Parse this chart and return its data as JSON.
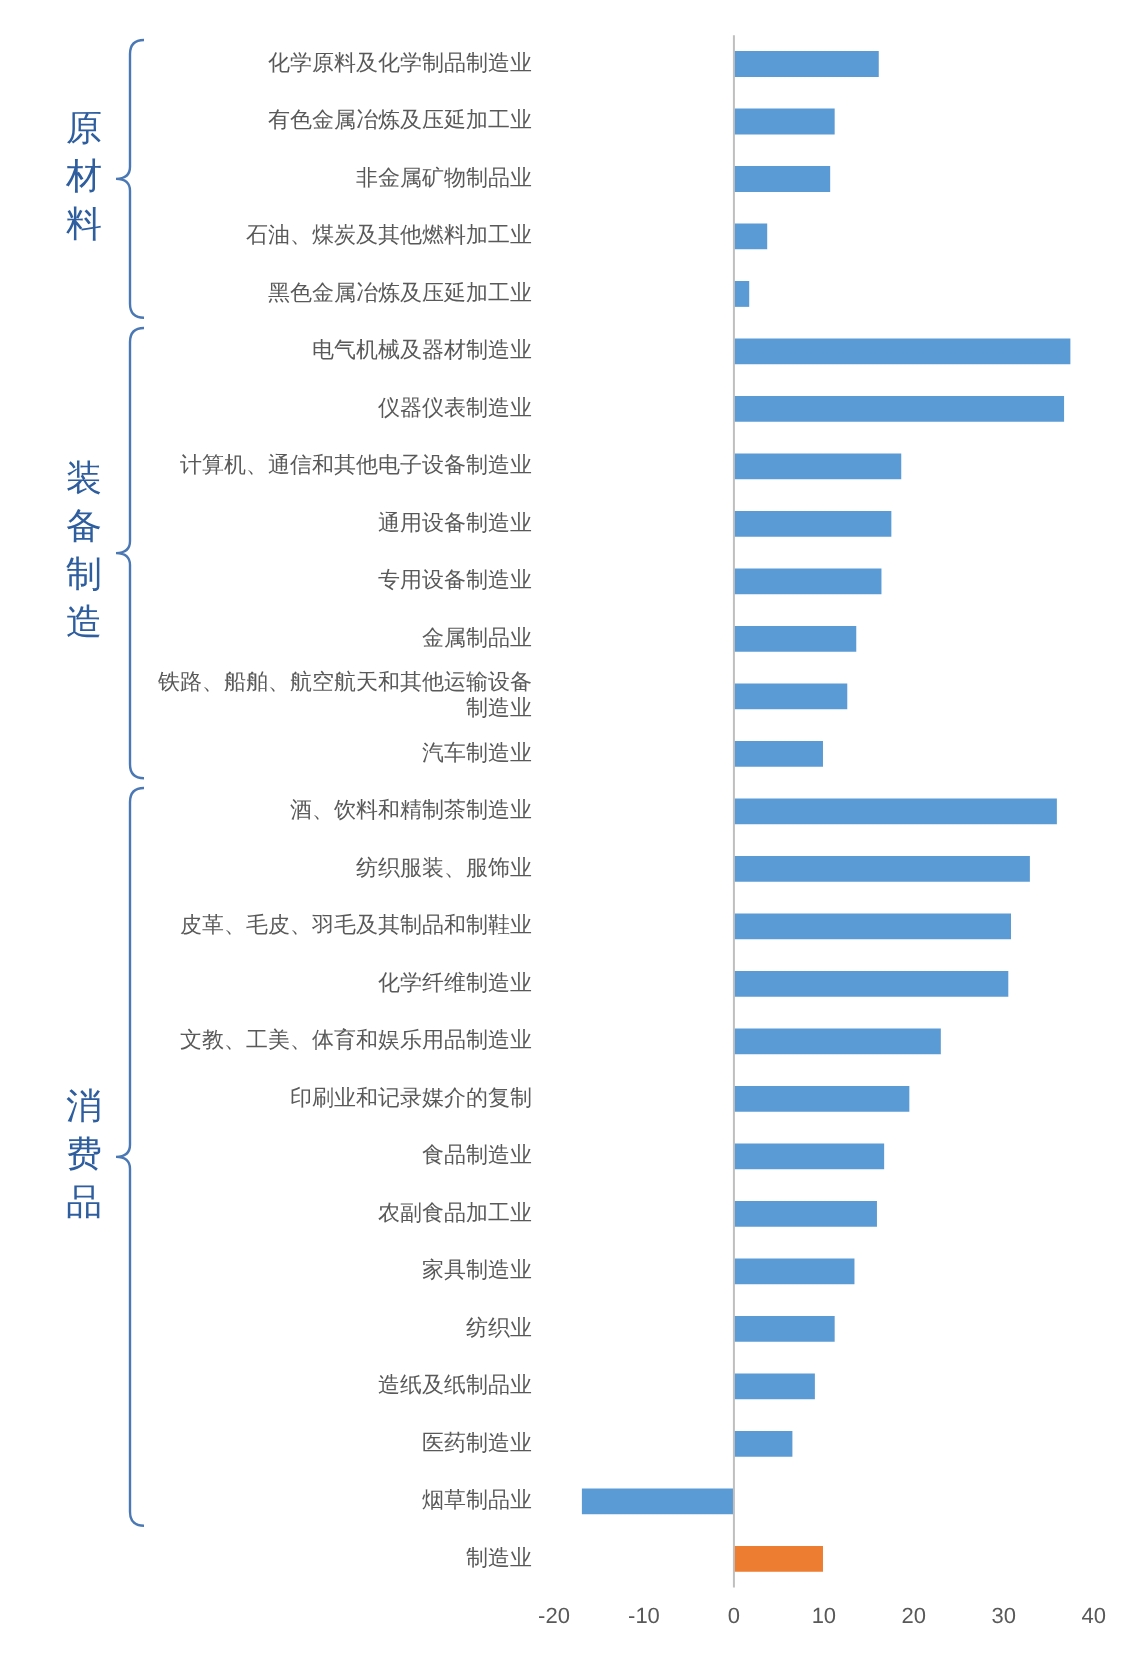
{
  "chart_data": {
    "type": "bar",
    "orientation": "horizontal",
    "categories": [
      "化学原料及化学制品制造业",
      "有色金属冶炼及压延加工业",
      "非金属矿物制品业",
      "石油、煤炭及其他燃料加工业",
      "黑色金属冶炼及压延加工业",
      "电气机械及器材制造业",
      "仪器仪表制造业",
      "计算机、通信和其他电子设备制造业",
      "通用设备制造业",
      "专用设备制造业",
      "金属制品业",
      "铁路、船舶、航空航天和其他运输设备制造业",
      "汽车制造业",
      "酒、饮料和精制茶制造业",
      "纺织服装、服饰业",
      "皮革、毛皮、羽毛及其制品和制鞋业",
      "化学纤维制造业",
      "文教、工美、体育和娱乐用品制造业",
      "印刷业和记录媒介的复制",
      "食品制造业",
      "农副食品加工业",
      "家具制造业",
      "纺织业",
      "造纸及纸制品业",
      "医药制造业",
      "烟草制品业",
      "制造业"
    ],
    "values": [
      16.1,
      11.2,
      10.7,
      3.7,
      1.7,
      37.4,
      36.7,
      18.6,
      17.5,
      16.4,
      13.6,
      12.6,
      9.9,
      35.9,
      32.9,
      30.8,
      30.5,
      23.0,
      19.5,
      16.7,
      15.9,
      13.4,
      11.2,
      9.0,
      6.5,
      -16.9,
      9.9
    ],
    "colors": [
      "#5b9bd5",
      "#5b9bd5",
      "#5b9bd5",
      "#5b9bd5",
      "#5b9bd5",
      "#5b9bd5",
      "#5b9bd5",
      "#5b9bd5",
      "#5b9bd5",
      "#5b9bd5",
      "#5b9bd5",
      "#5b9bd5",
      "#5b9bd5",
      "#5b9bd5",
      "#5b9bd5",
      "#5b9bd5",
      "#5b9bd5",
      "#5b9bd5",
      "#5b9bd5",
      "#5b9bd5",
      "#5b9bd5",
      "#5b9bd5",
      "#5b9bd5",
      "#5b9bd5",
      "#5b9bd5",
      "#5b9bd5",
      "#ed7d31"
    ],
    "xlim": [
      -20,
      40
    ],
    "xticks": [
      -20,
      -10,
      0,
      10,
      20,
      30,
      40
    ],
    "grid": false,
    "legend": false,
    "ref_lines": [
      {
        "axis": "x",
        "value": 0,
        "color": "#bfbfbf"
      }
    ],
    "annotations": [
      "原材料",
      "装备制造",
      "消费品"
    ]
  }
}
